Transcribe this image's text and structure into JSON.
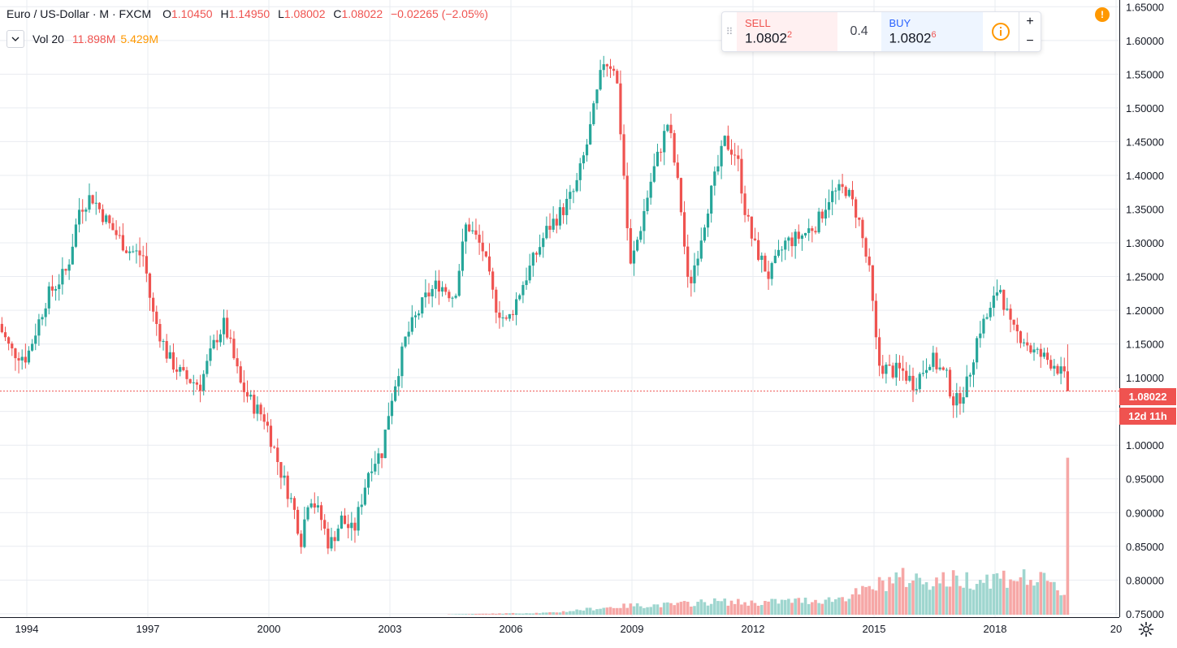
{
  "legend": {
    "symbol": "Euro / US-Dollar",
    "interval": "M",
    "exchange": "FXCM",
    "open_key": "O",
    "open": "1.10450",
    "high_key": "H",
    "high": "1.14950",
    "low_key": "L",
    "low": "1.08002",
    "close_key": "C",
    "close": "1.08022",
    "change": "−0.02265 (−2.05%)"
  },
  "volume_legend": {
    "label": "Vol 20",
    "value1": "11.898M",
    "value2": "5.429M"
  },
  "trade": {
    "sell_label": "SELL",
    "sell_price_main": "1.0802",
    "sell_price_sup": "2",
    "spread": "0.4",
    "buy_label": "BUY",
    "buy_price_main": "1.0802",
    "buy_price_sup": "6",
    "zoom_in": "+",
    "zoom_out": "−"
  },
  "alert_badge": "!",
  "last_price_tag": "1.08022",
  "countdown_tag": "12d 11h",
  "colors": {
    "up": "#26a69a",
    "down": "#ef5350",
    "up_volume": "#9fd6cf",
    "down_volume": "#f6a7a6",
    "grid": "#e9ecf1",
    "last_price_line": "#ef5350"
  },
  "chart_data": {
    "type": "candlestick",
    "title": "Euro / US-Dollar",
    "interval": "monthly",
    "x_ticks": [
      "1994",
      "1997",
      "2000",
      "2003",
      "2006",
      "2009",
      "2012",
      "2015",
      "2018",
      "20"
    ],
    "y_ticks": [
      "1.65000",
      "1.60000",
      "1.55000",
      "1.50000",
      "1.45000",
      "1.40000",
      "1.35000",
      "1.30000",
      "1.25000",
      "1.20000",
      "1.15000",
      "1.10000",
      "1.05000",
      "1.00000",
      "0.95000",
      "0.90000",
      "0.85000",
      "0.80000",
      "0.75000"
    ],
    "ylim": [
      0.745,
      1.66
    ],
    "xlim": [
      1993.3,
      2020.0
    ],
    "grid": true,
    "last_price": 1.08022,
    "price_path": [
      [
        1993.3,
        1.18
      ],
      [
        1993.6,
        1.14
      ],
      [
        1994.0,
        1.13
      ],
      [
        1994.5,
        1.22
      ],
      [
        1995.0,
        1.26
      ],
      [
        1995.3,
        1.35
      ],
      [
        1995.6,
        1.37
      ],
      [
        1996.0,
        1.33
      ],
      [
        1996.5,
        1.29
      ],
      [
        1996.9,
        1.28
      ],
      [
        1997.1,
        1.2
      ],
      [
        1997.5,
        1.13
      ],
      [
        1997.9,
        1.1
      ],
      [
        1998.3,
        1.09
      ],
      [
        1998.7,
        1.16
      ],
      [
        1998.9,
        1.18
      ],
      [
        1999.3,
        1.09
      ],
      [
        1999.6,
        1.06
      ],
      [
        1999.9,
        1.04
      ],
      [
        2000.3,
        0.96
      ],
      [
        2000.6,
        0.91
      ],
      [
        2000.8,
        0.86
      ],
      [
        2001.0,
        0.93
      ],
      [
        2001.3,
        0.89
      ],
      [
        2001.5,
        0.85
      ],
      [
        2001.8,
        0.89
      ],
      [
        2002.1,
        0.87
      ],
      [
        2002.5,
        0.97
      ],
      [
        2002.8,
        0.99
      ],
      [
        2003.0,
        1.06
      ],
      [
        2003.4,
        1.16
      ],
      [
        2003.9,
        1.22
      ],
      [
        2004.2,
        1.24
      ],
      [
        2004.6,
        1.22
      ],
      [
        2004.9,
        1.33
      ],
      [
        2005.3,
        1.29
      ],
      [
        2005.6,
        1.21
      ],
      [
        2005.9,
        1.18
      ],
      [
        2006.3,
        1.24
      ],
      [
        2006.6,
        1.28
      ],
      [
        2006.9,
        1.32
      ],
      [
        2007.3,
        1.35
      ],
      [
        2007.6,
        1.38
      ],
      [
        2007.9,
        1.45
      ],
      [
        2008.3,
        1.57
      ],
      [
        2008.6,
        1.56
      ],
      [
        2008.8,
        1.4
      ],
      [
        2008.95,
        1.26
      ],
      [
        2009.2,
        1.32
      ],
      [
        2009.5,
        1.4
      ],
      [
        2009.9,
        1.48
      ],
      [
        2010.2,
        1.36
      ],
      [
        2010.4,
        1.23
      ],
      [
        2010.6,
        1.28
      ],
      [
        2010.9,
        1.36
      ],
      [
        2011.3,
        1.45
      ],
      [
        2011.6,
        1.43
      ],
      [
        2011.8,
        1.35
      ],
      [
        2012.0,
        1.3
      ],
      [
        2012.4,
        1.25
      ],
      [
        2012.8,
        1.3
      ],
      [
        2013.2,
        1.31
      ],
      [
        2013.6,
        1.33
      ],
      [
        2013.9,
        1.37
      ],
      [
        2014.3,
        1.38
      ],
      [
        2014.6,
        1.34
      ],
      [
        2014.9,
        1.25
      ],
      [
        2015.1,
        1.12
      ],
      [
        2015.4,
        1.11
      ],
      [
        2015.7,
        1.11
      ],
      [
        2016.0,
        1.09
      ],
      [
        2016.4,
        1.13
      ],
      [
        2016.8,
        1.1
      ],
      [
        2017.0,
        1.06
      ],
      [
        2017.3,
        1.09
      ],
      [
        2017.6,
        1.17
      ],
      [
        2017.9,
        1.2
      ],
      [
        2018.1,
        1.24
      ],
      [
        2018.4,
        1.17
      ],
      [
        2018.7,
        1.16
      ],
      [
        2018.9,
        1.14
      ],
      [
        2019.2,
        1.13
      ],
      [
        2019.5,
        1.12
      ],
      [
        2019.7,
        1.1
      ],
      [
        2019.83,
        1.08022
      ]
    ],
    "volume_path": [
      [
        2004.0,
        0.0
      ],
      [
        2005.0,
        0.05
      ],
      [
        2006.0,
        0.1
      ],
      [
        2007.0,
        0.15
      ],
      [
        2008.0,
        0.45
      ],
      [
        2009.0,
        0.7
      ],
      [
        2010.0,
        0.75
      ],
      [
        2011.0,
        1.0
      ],
      [
        2012.0,
        0.9
      ],
      [
        2013.0,
        1.05
      ],
      [
        2014.0,
        1.15
      ],
      [
        2014.8,
        1.8
      ],
      [
        2015.5,
        2.8
      ],
      [
        2016.5,
        2.6
      ],
      [
        2017.5,
        2.7
      ],
      [
        2018.5,
        2.9
      ],
      [
        2019.3,
        2.4
      ],
      [
        2019.79,
        1.5
      ]
    ],
    "last_volume": 11.898,
    "volume_scale_max": 12.0
  }
}
